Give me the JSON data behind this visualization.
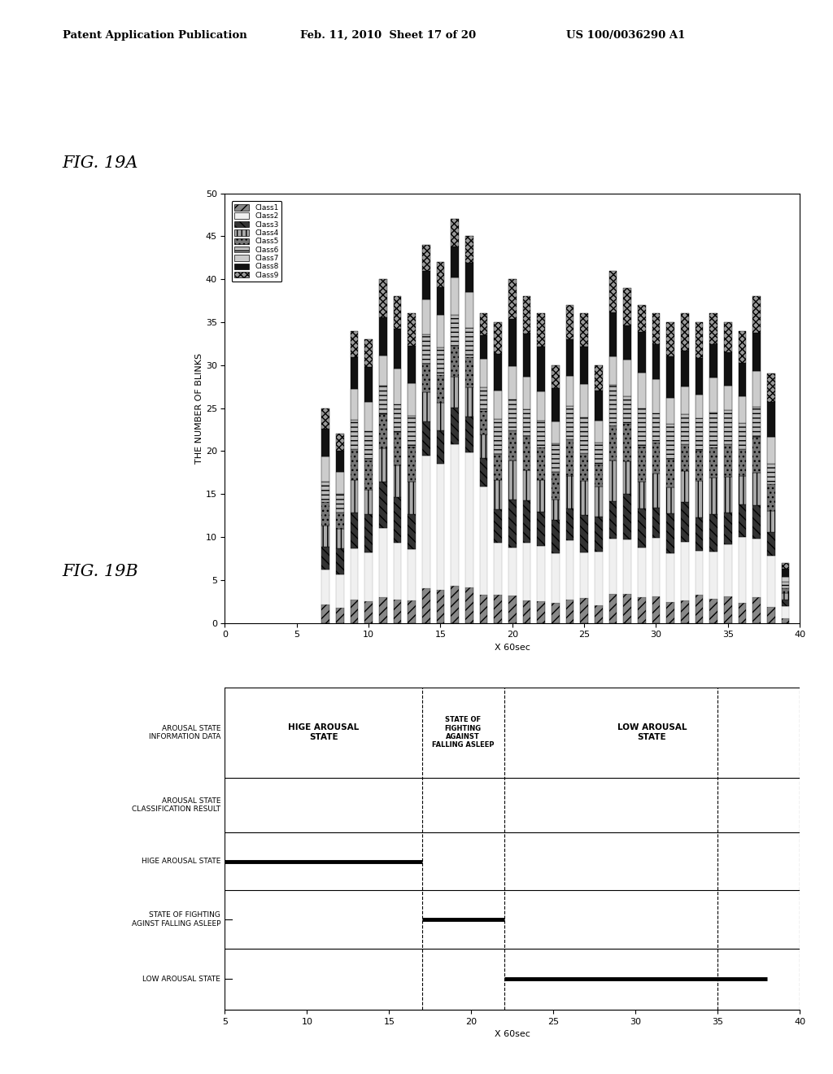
{
  "header_left": "Patent Application Publication",
  "header_mid": "Feb. 11, 2010  Sheet 17 of 20",
  "header_right": "US 100/0036290 A1",
  "fig_label_A": "FIG. 19A",
  "fig_label_B": "FIG. 19B",
  "background_color": "#ffffff",
  "chart_A": {
    "ylabel": "THE NUMBER OF BLINKS",
    "xlabel": "X 60sec",
    "xlim": [
      0,
      40
    ],
    "ylim": [
      0,
      50
    ],
    "xticks": [
      0,
      5,
      10,
      15,
      20,
      25,
      30,
      35,
      40
    ],
    "yticks": [
      0,
      5,
      10,
      15,
      20,
      25,
      30,
      35,
      40,
      45,
      50
    ],
    "legend_classes": [
      "Class1",
      "Class2",
      "Class3",
      "Class4",
      "Class5",
      "Class6",
      "Class7",
      "Class8",
      "Class9"
    ]
  },
  "chart_B": {
    "xlabel": "X 60sec",
    "xlim": [
      5,
      40
    ],
    "xticks": [
      5,
      10,
      15,
      20,
      25,
      30,
      35,
      40
    ],
    "hige_line_x": [
      5,
      17
    ],
    "fighting_line_x": [
      17,
      22
    ],
    "low_line_x": [
      22,
      38
    ],
    "vlines_dashed": [
      17,
      22,
      35
    ],
    "vline_solid": 5
  }
}
